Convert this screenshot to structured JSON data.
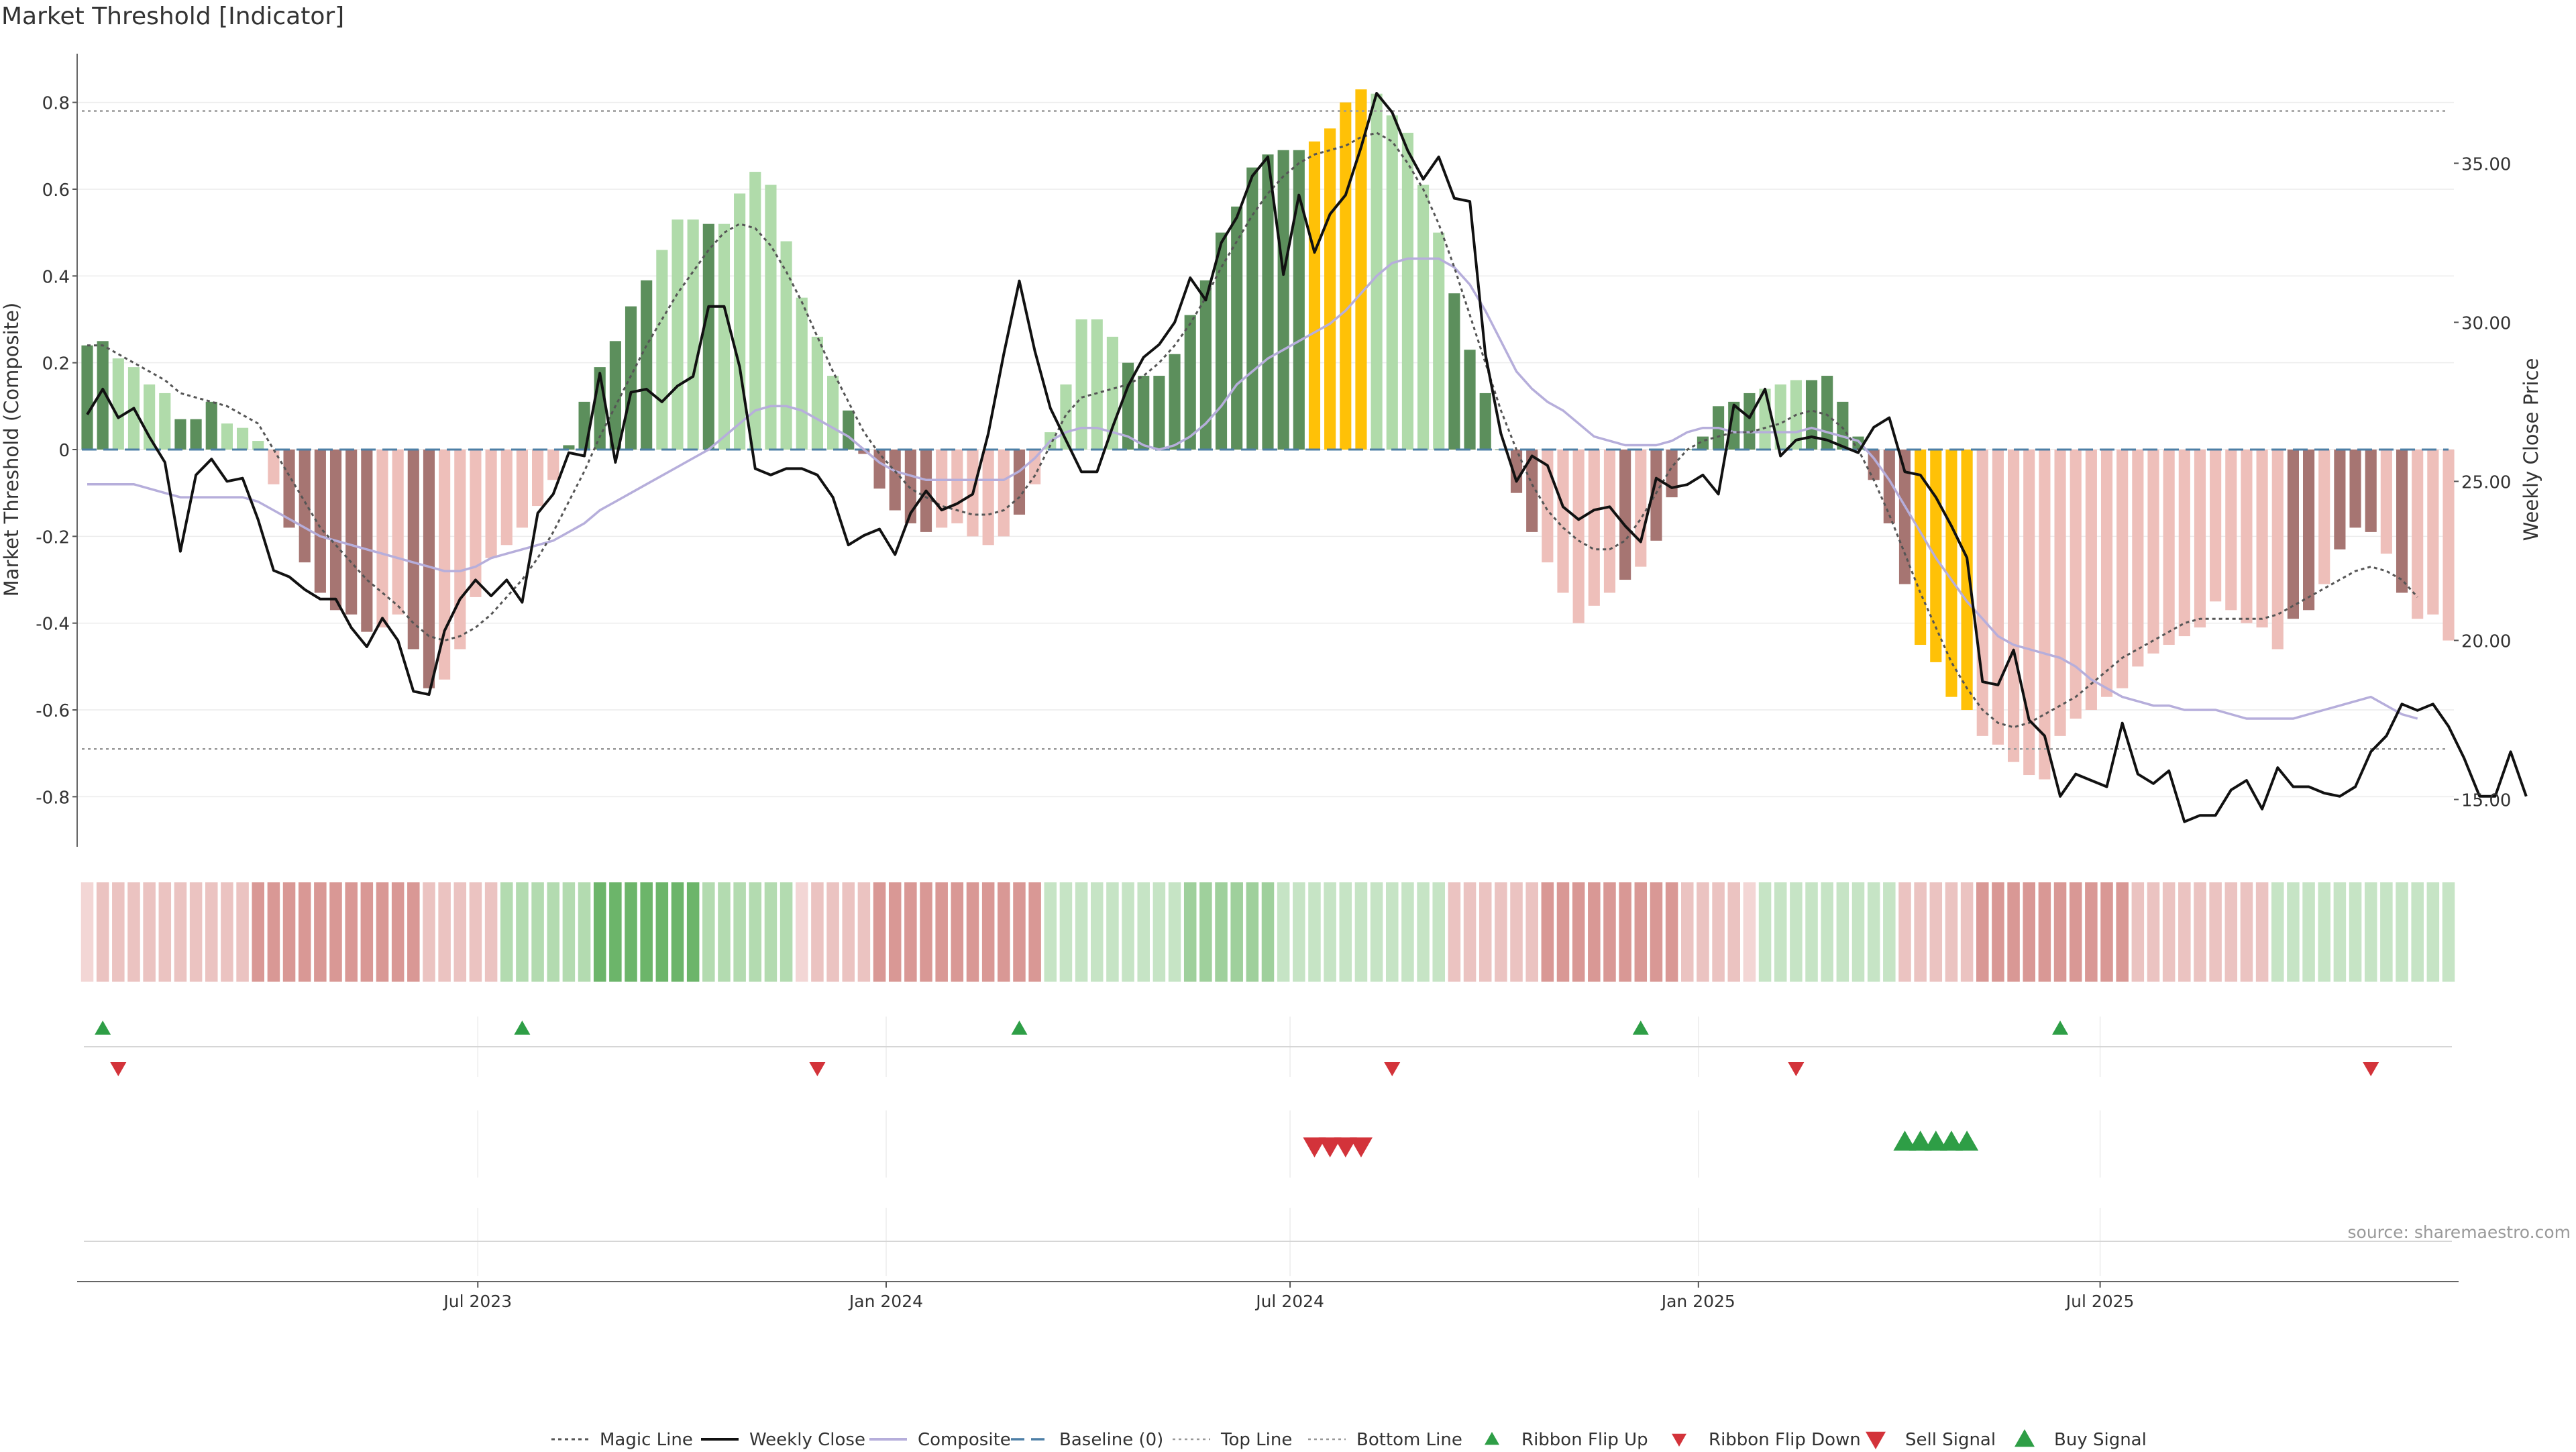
{
  "title": "Market Threshold [Indicator]",
  "source": "source: sharemaestro.com",
  "colors": {
    "strong_up": "#5c8f5c",
    "weak_up": "#b0dbaa",
    "strong_down": "#a67572",
    "weak_down": "#eebfba",
    "extreme": "#ffc107",
    "weekly_close": "#111111",
    "composite": "#b6aedb",
    "magic_line": "#555555",
    "baseline": "#4d7fa6",
    "threshold": "#999999",
    "buy": "#2e9e46",
    "sell": "#d3333a"
  },
  "legend": [
    {
      "key": "magic",
      "label": "Magic Line"
    },
    {
      "key": "close",
      "label": "Weekly Close"
    },
    {
      "key": "composite",
      "label": "Composite"
    },
    {
      "key": "baseline",
      "label": "Baseline (0)"
    },
    {
      "key": "top",
      "label": "Top Line"
    },
    {
      "key": "bottom",
      "label": "Bottom Line"
    },
    {
      "key": "flip_up",
      "label": "Ribbon Flip Up"
    },
    {
      "key": "flip_down",
      "label": "Ribbon Flip Down"
    },
    {
      "key": "sell",
      "label": "Sell Signal"
    },
    {
      "key": "buy",
      "label": "Buy Signal"
    }
  ],
  "chart_data": {
    "type": "bar",
    "title": "Market Threshold [Indicator]",
    "ylabel_left": "Market Threshold (Composite)",
    "ylabel_right": "Weekly Close Price",
    "ylim_left": [
      -0.92,
      0.92
    ],
    "ylim_right": [
      13.45,
      38.55
    ],
    "yticks_left": [
      "-0.8",
      "-0.6",
      "-0.4",
      "-0.2",
      "0",
      "0.2",
      "0.4",
      "0.6",
      "0.8"
    ],
    "yticks_right": [
      "15.00",
      "20.00",
      "25.00",
      "30.00",
      "35.00"
    ],
    "x_start": "2023-01-06",
    "x_step_days": 7,
    "x_ticks": [
      {
        "date": "2023-07-01",
        "label": "Jul 2023"
      },
      {
        "date": "2024-01-01",
        "label": "Jan 2024"
      },
      {
        "date": "2024-07-01",
        "label": "Jul 2024"
      },
      {
        "date": "2025-01-01",
        "label": "Jan 2025"
      },
      {
        "date": "2025-07-01",
        "label": "Jul 2025"
      }
    ],
    "top_line": 0.78,
    "bottom_line": -0.69,
    "baseline": 0,
    "grid": true,
    "legend_position": "bottom",
    "composite_bars": [
      0.24,
      0.25,
      0.21,
      0.19,
      0.15,
      0.13,
      0.07,
      0.07,
      0.11,
      0.06,
      0.05,
      0.02,
      -0.08,
      -0.18,
      -0.26,
      -0.33,
      -0.37,
      -0.38,
      -0.42,
      -0.41,
      -0.38,
      -0.46,
      -0.55,
      -0.53,
      -0.46,
      -0.34,
      -0.25,
      -0.22,
      -0.18,
      -0.13,
      -0.07,
      0.01,
      0.11,
      0.19,
      0.25,
      0.33,
      0.39,
      0.46,
      0.53,
      0.53,
      0.52,
      0.52,
      0.59,
      0.64,
      0.61,
      0.48,
      0.35,
      0.26,
      0.17,
      0.09,
      -0.01,
      -0.09,
      -0.14,
      -0.17,
      -0.19,
      -0.18,
      -0.17,
      -0.2,
      -0.22,
      -0.2,
      -0.15,
      -0.08,
      0.04,
      0.15,
      0.3,
      0.3,
      0.26,
      0.2,
      0.17,
      0.17,
      0.22,
      0.31,
      0.39,
      0.5,
      0.56,
      0.65,
      0.68,
      0.69,
      0.69,
      0.71,
      0.74,
      0.8,
      0.83,
      0.82,
      0.77,
      0.73,
      0.61,
      0.5,
      0.36,
      0.23,
      0.13,
      0.0,
      -0.1,
      -0.19,
      -0.26,
      -0.33,
      -0.4,
      -0.36,
      -0.33,
      -0.3,
      -0.27,
      -0.21,
      -0.11,
      0.0,
      0.03,
      0.1,
      0.11,
      0.13,
      0.14,
      0.15,
      0.16,
      0.16,
      0.17,
      0.11,
      0.03,
      -0.07,
      -0.17,
      -0.31,
      -0.45,
      -0.49,
      -0.57,
      -0.6,
      -0.66,
      -0.68,
      -0.72,
      -0.75,
      -0.76,
      -0.66,
      -0.62,
      -0.6,
      -0.57,
      -0.55,
      -0.5,
      -0.47,
      -0.45,
      -0.43,
      -0.41,
      -0.35,
      -0.37,
      -0.4,
      -0.41,
      -0.46,
      -0.39,
      -0.37,
      -0.31,
      -0.23,
      -0.18,
      -0.19,
      -0.24,
      -0.33,
      -0.39,
      -0.38,
      -0.44
    ],
    "bar_classes": "SSWWWWSSSWWWWSSSSSSWWSSWWWWWWWWSSSSSSWWWSWWWWWWWWSSSSSSWWWWWSWWWWWWSSSSSSSSSSSSXXXXWWWWWSSSSSSWWWWWSWSSSSSSSWWWSSSSSSSXXXXWWWWWWWWWWWWWWWWWWWWSSWSSSWS",
    "weekly_close": [
      27.1,
      27.9,
      27.0,
      27.3,
      26.4,
      25.6,
      22.8,
      25.2,
      25.7,
      25.0,
      25.1,
      23.8,
      22.2,
      22.0,
      21.6,
      21.3,
      21.3,
      20.4,
      19.8,
      20.7,
      20.0,
      18.4,
      18.3,
      20.3,
      21.3,
      21.9,
      21.4,
      21.9,
      21.2,
      24.0,
      24.6,
      25.9,
      25.8,
      28.4,
      25.6,
      27.8,
      27.9,
      27.5,
      28.0,
      28.3,
      30.5,
      30.5,
      28.6,
      25.4,
      25.2,
      25.4,
      25.4,
      25.2,
      24.5,
      23.0,
      23.3,
      23.5,
      22.7,
      24.0,
      24.7,
      24.1,
      24.3,
      24.6,
      26.5,
      29.0,
      31.3,
      29.1,
      27.3,
      26.3,
      25.3,
      25.3,
      26.7,
      28.0,
      28.9,
      29.3,
      30.0,
      31.4,
      30.7,
      32.5,
      33.3,
      34.6,
      35.2,
      31.5,
      34.0,
      32.2,
      33.4,
      34.0,
      35.5,
      37.2,
      36.6,
      35.4,
      34.5,
      35.2,
      33.9,
      33.8,
      29.0,
      26.5,
      25.0,
      25.8,
      25.5,
      24.2,
      23.8,
      24.1,
      24.2,
      23.6,
      23.1,
      25.1,
      24.8,
      24.9,
      25.2,
      24.6,
      27.4,
      27.0,
      27.9,
      25.8,
      26.3,
      26.4,
      26.3,
      26.1,
      25.9,
      26.7,
      27.0,
      25.3,
      25.2,
      24.5,
      23.6,
      22.6,
      18.7,
      18.6,
      19.7,
      17.5,
      17.0,
      15.1,
      15.8,
      15.6,
      15.4,
      17.4,
      15.8,
      15.5,
      15.9,
      14.3,
      14.5,
      14.5,
      15.3,
      15.6,
      14.7,
      16.0,
      15.4,
      15.4,
      15.2,
      15.1,
      15.4,
      16.5,
      17.0,
      18.0,
      17.8,
      18.0,
      17.3,
      16.3,
      15.1,
      15.1,
      16.5,
      15.1
    ],
    "composite_line": [
      -0.08,
      -0.08,
      -0.08,
      -0.08,
      -0.09,
      -0.1,
      -0.11,
      -0.11,
      -0.11,
      -0.11,
      -0.11,
      -0.12,
      -0.14,
      -0.16,
      -0.18,
      -0.2,
      -0.21,
      -0.22,
      -0.23,
      -0.24,
      -0.25,
      -0.26,
      -0.27,
      -0.28,
      -0.28,
      -0.27,
      -0.25,
      -0.24,
      -0.23,
      -0.22,
      -0.21,
      -0.19,
      -0.17,
      -0.14,
      -0.12,
      -0.1,
      -0.08,
      -0.06,
      -0.04,
      -0.02,
      0.0,
      0.03,
      0.06,
      0.09,
      0.1,
      0.1,
      0.09,
      0.07,
      0.05,
      0.03,
      0.0,
      -0.03,
      -0.05,
      -0.06,
      -0.07,
      -0.07,
      -0.07,
      -0.07,
      -0.07,
      -0.07,
      -0.05,
      -0.02,
      0.02,
      0.04,
      0.05,
      0.05,
      0.04,
      0.03,
      0.01,
      0.0,
      0.01,
      0.03,
      0.06,
      0.1,
      0.15,
      0.18,
      0.21,
      0.23,
      0.25,
      0.27,
      0.29,
      0.32,
      0.36,
      0.4,
      0.43,
      0.44,
      0.44,
      0.44,
      0.42,
      0.38,
      0.32,
      0.25,
      0.18,
      0.14,
      0.11,
      0.09,
      0.06,
      0.03,
      0.02,
      0.01,
      0.01,
      0.01,
      0.02,
      0.04,
      0.05,
      0.05,
      0.04,
      0.04,
      0.04,
      0.04,
      0.04,
      0.05,
      0.04,
      0.03,
      0.02,
      -0.02,
      -0.07,
      -0.13,
      -0.19,
      -0.25,
      -0.3,
      -0.35,
      -0.39,
      -0.43,
      -0.45,
      -0.46,
      -0.47,
      -0.48,
      -0.5,
      -0.53,
      -0.55,
      -0.57,
      -0.58,
      -0.59,
      -0.59,
      -0.6,
      -0.6,
      -0.6,
      -0.61,
      -0.62,
      -0.62,
      -0.62,
      -0.62,
      -0.61,
      -0.6,
      -0.59,
      -0.58,
      -0.57,
      -0.59,
      -0.61,
      -0.62
    ],
    "magic_line": [
      0.24,
      0.24,
      0.22,
      0.2,
      0.18,
      0.16,
      0.13,
      0.12,
      0.11,
      0.1,
      0.08,
      0.06,
      0.0,
      -0.06,
      -0.12,
      -0.18,
      -0.22,
      -0.26,
      -0.3,
      -0.33,
      -0.36,
      -0.4,
      -0.43,
      -0.44,
      -0.43,
      -0.41,
      -0.38,
      -0.34,
      -0.3,
      -0.25,
      -0.19,
      -0.12,
      -0.05,
      0.03,
      0.1,
      0.17,
      0.24,
      0.3,
      0.36,
      0.41,
      0.46,
      0.5,
      0.52,
      0.51,
      0.47,
      0.41,
      0.34,
      0.26,
      0.18,
      0.11,
      0.04,
      -0.01,
      -0.05,
      -0.09,
      -0.11,
      -0.13,
      -0.14,
      -0.15,
      -0.15,
      -0.14,
      -0.11,
      -0.06,
      0.01,
      0.08,
      0.12,
      0.13,
      0.14,
      0.15,
      0.17,
      0.2,
      0.24,
      0.29,
      0.35,
      0.42,
      0.48,
      0.54,
      0.59,
      0.63,
      0.66,
      0.68,
      0.69,
      0.7,
      0.72,
      0.73,
      0.71,
      0.66,
      0.6,
      0.52,
      0.42,
      0.31,
      0.2,
      0.09,
      0.0,
      -0.08,
      -0.14,
      -0.18,
      -0.21,
      -0.23,
      -0.23,
      -0.21,
      -0.16,
      -0.1,
      -0.04,
      0.0,
      0.02,
      0.03,
      0.04,
      0.04,
      0.05,
      0.06,
      0.08,
      0.09,
      0.08,
      0.05,
      0.0,
      -0.07,
      -0.15,
      -0.24,
      -0.33,
      -0.41,
      -0.49,
      -0.55,
      -0.6,
      -0.63,
      -0.64,
      -0.63,
      -0.61,
      -0.59,
      -0.57,
      -0.54,
      -0.51,
      -0.48,
      -0.46,
      -0.44,
      -0.42,
      -0.4,
      -0.39,
      -0.39,
      -0.39,
      -0.39,
      -0.39,
      -0.38,
      -0.36,
      -0.34,
      -0.32,
      -0.3,
      -0.28,
      -0.27,
      -0.28,
      -0.3,
      -0.34
    ],
    "ribbon_classes": "waaaaaaaaaabbbbbbbbbbbaaaaaCCCCCCDDDDDDDCCCCCCwaaaabbbbbbbbbbbcccccccccddddddcccccccccccaaaaaabbbbbbbbbaaaawcccccccccaaaaabbbbbbbbbbaaaaaaaaacccccccccccccccw",
    "ribbon_flip_up_idx": [
      1,
      28,
      60,
      100,
      127
    ],
    "ribbon_flip_down_idx": [
      2,
      47,
      84,
      110,
      147
    ],
    "sell_signal_idx": [
      79,
      80,
      81,
      82
    ],
    "buy_signal_idx": [
      117,
      118,
      119,
      120,
      121
    ]
  }
}
